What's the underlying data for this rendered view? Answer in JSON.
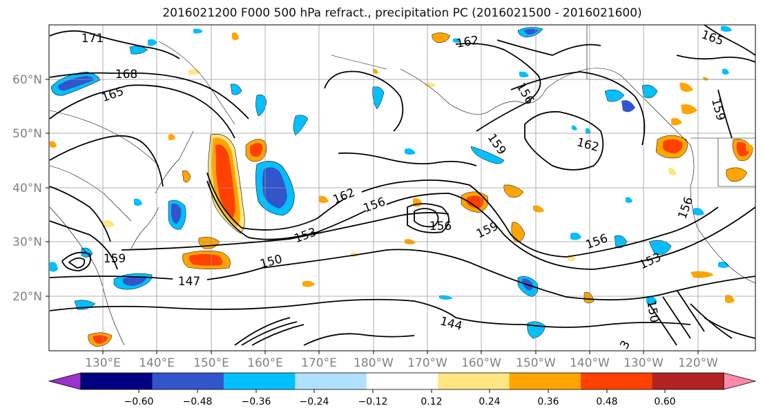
{
  "title": "2016021200 F000 500 hPa refract., precipitation PC (2016021500 - 2016021600)",
  "axes": {
    "lon_ticks": [
      "130°E",
      "140°E",
      "150°E",
      "160°E",
      "170°E",
      "180°W",
      "170°W",
      "160°W",
      "150°W",
      "140°W",
      "130°W",
      "120°W"
    ],
    "lat_ticks": [
      "60°N",
      "50°N",
      "40°N",
      "30°N",
      "20°N"
    ]
  },
  "contours": {
    "color": "#000000",
    "labels": [
      {
        "text": "171"
      },
      {
        "text": "168"
      },
      {
        "text": "165"
      },
      {
        "text": "162"
      },
      {
        "text": "162"
      },
      {
        "text": "162"
      },
      {
        "text": "159"
      },
      {
        "text": "159"
      },
      {
        "text": "159"
      },
      {
        "text": "159"
      },
      {
        "text": "156"
      },
      {
        "text": "156"
      },
      {
        "text": "156"
      },
      {
        "text": "156"
      },
      {
        "text": "156"
      },
      {
        "text": "153"
      },
      {
        "text": "153"
      },
      {
        "text": "150"
      },
      {
        "text": "150"
      },
      {
        "text": "147"
      },
      {
        "text": "144"
      },
      {
        "text": "165"
      },
      {
        "text": "3"
      }
    ]
  },
  "colorbar": {
    "ticks": [
      "−0.60",
      "−0.48",
      "−0.36",
      "−0.24",
      "−0.12",
      "0.12",
      "0.24",
      "0.36",
      "0.48",
      "0.60"
    ],
    "colors": [
      "#9933cc",
      "#000080",
      "#3355cc",
      "#00bfff",
      "#b0e0ff",
      "#ffffff",
      "#ffe680",
      "#ffa500",
      "#ff4000",
      "#b22222",
      "#ff88aa"
    ]
  }
}
